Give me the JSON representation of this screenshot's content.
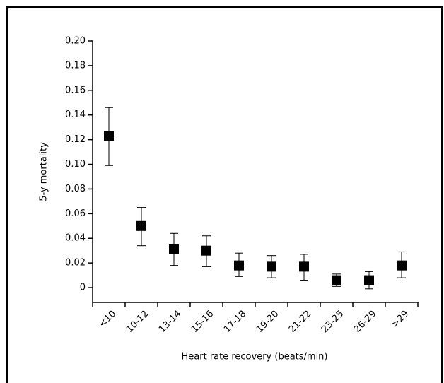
{
  "chart_data": {
    "type": "errorbar",
    "x_label": "Heart rate recovery (beats/min)",
    "y_label": "5-y mortality",
    "categories": [
      "<10",
      "10-12",
      "13-14",
      "15-16",
      "17-18",
      "19-20",
      "21-22",
      "23-25",
      "26-29",
      ">29"
    ],
    "values": [
      0.123,
      0.05,
      0.031,
      0.03,
      0.018,
      0.017,
      0.017,
      0.006,
      0.006,
      0.018
    ],
    "lower": [
      0.099,
      0.034,
      0.018,
      0.017,
      0.009,
      0.008,
      0.006,
      0.001,
      -0.001,
      0.008
    ],
    "upper": [
      0.146,
      0.065,
      0.044,
      0.042,
      0.028,
      0.026,
      0.027,
      0.011,
      0.013,
      0.029
    ],
    "color": "#000000",
    "ylim": [
      -0.012,
      0.2
    ],
    "yticks": [
      0,
      0.02,
      0.04,
      0.06,
      0.08,
      {
        "value": 0.1,
        "label": "0.10"
      },
      0.12,
      0.14,
      0.16,
      0.18,
      {
        "value": 0.2,
        "label": "0.20"
      }
    ]
  }
}
